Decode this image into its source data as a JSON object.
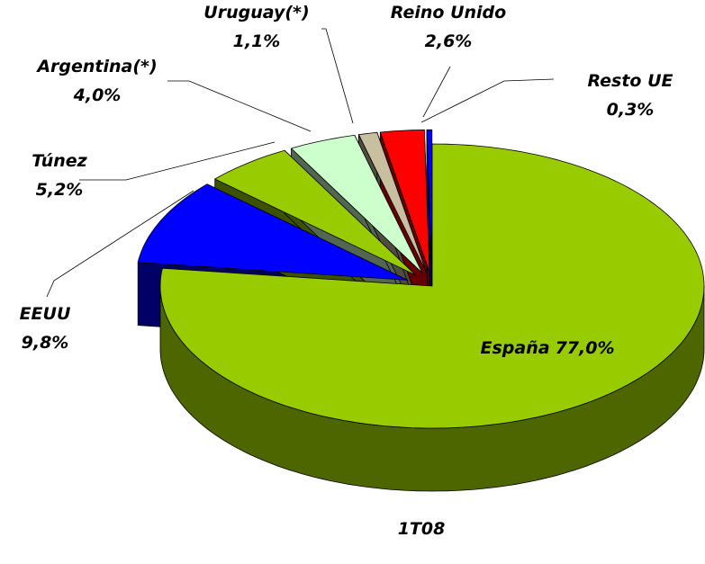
{
  "chart_data": {
    "type": "pie",
    "title": "1T08",
    "categories": [
      "España",
      "EEUU",
      "Túnez",
      "Argentina(*)",
      "Uruguay(*)",
      "Reino Unido",
      "Resto UE"
    ],
    "values": [
      77.0,
      9.8,
      5.2,
      4.0,
      1.1,
      2.6,
      0.3
    ],
    "value_labels": [
      "77,0%",
      "9,8%",
      "5,2%",
      "4,0%",
      "1,1%",
      "2,6%",
      "0,3%"
    ],
    "colors": [
      "#99cc00",
      "#0000ff",
      "#99cc00",
      "#ccffcc",
      "#c8bfa0",
      "#ff0000",
      "#0000ff"
    ]
  }
}
